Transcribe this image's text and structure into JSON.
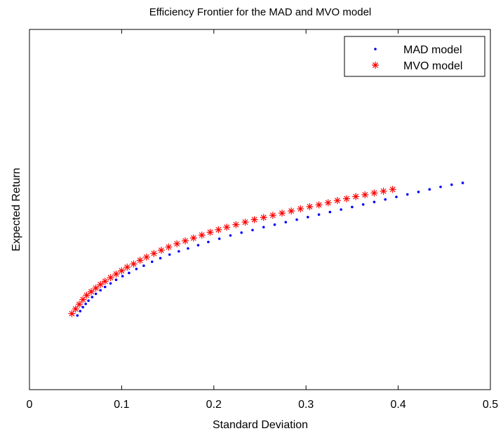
{
  "chart_data": {
    "type": "scatter",
    "title": "Efficiency Frontier for the MAD and MVO model",
    "xlabel": "Standard Deviation",
    "ylabel": "Expected Return",
    "xlim": [
      0,
      0.5
    ],
    "ylim": [
      0,
      1
    ],
    "xticks": [
      0,
      0.1,
      0.2,
      0.3,
      0.4,
      0.5
    ],
    "xtick_labels": [
      "0",
      "0.1",
      "0.2",
      "0.3",
      "0.4",
      "0.5"
    ],
    "yticks_visible": false,
    "grid": false,
    "legend_position": "top-right",
    "series": [
      {
        "name": "MAD model",
        "marker": "dot",
        "color": "#0000ff",
        "x": [
          0.052,
          0.055,
          0.058,
          0.061,
          0.064,
          0.068,
          0.072,
          0.077,
          0.082,
          0.088,
          0.094,
          0.101,
          0.108,
          0.116,
          0.124,
          0.133,
          0.142,
          0.152,
          0.162,
          0.172,
          0.183,
          0.194,
          0.206,
          0.218,
          0.23,
          0.242,
          0.254,
          0.266,
          0.278,
          0.29,
          0.302,
          0.314,
          0.326,
          0.338,
          0.35,
          0.362,
          0.374,
          0.386,
          0.398,
          0.41,
          0.422,
          0.434,
          0.446,
          0.458,
          0.47
        ],
        "y": [
          0.206,
          0.218,
          0.229,
          0.238,
          0.247,
          0.257,
          0.266,
          0.276,
          0.285,
          0.295,
          0.305,
          0.315,
          0.324,
          0.335,
          0.344,
          0.355,
          0.365,
          0.375,
          0.384,
          0.392,
          0.401,
          0.41,
          0.419,
          0.428,
          0.436,
          0.443,
          0.451,
          0.458,
          0.465,
          0.472,
          0.479,
          0.486,
          0.493,
          0.5,
          0.507,
          0.514,
          0.521,
          0.528,
          0.535,
          0.542,
          0.549,
          0.556,
          0.563,
          0.569,
          0.574
        ]
      },
      {
        "name": "MVO model",
        "marker": "star",
        "color": "#ff0000",
        "x": [
          0.046,
          0.05,
          0.054,
          0.058,
          0.062,
          0.067,
          0.072,
          0.077,
          0.082,
          0.088,
          0.094,
          0.1,
          0.106,
          0.113,
          0.12,
          0.127,
          0.135,
          0.143,
          0.151,
          0.16,
          0.169,
          0.178,
          0.187,
          0.196,
          0.205,
          0.214,
          0.224,
          0.234,
          0.244,
          0.254,
          0.264,
          0.274,
          0.284,
          0.294,
          0.304,
          0.314,
          0.324,
          0.334,
          0.344,
          0.354,
          0.364,
          0.374,
          0.384,
          0.394
        ],
        "y": [
          0.211,
          0.224,
          0.237,
          0.25,
          0.262,
          0.272,
          0.282,
          0.292,
          0.301,
          0.311,
          0.321,
          0.33,
          0.34,
          0.349,
          0.359,
          0.368,
          0.378,
          0.387,
          0.396,
          0.405,
          0.413,
          0.421,
          0.429,
          0.437,
          0.444,
          0.451,
          0.458,
          0.465,
          0.472,
          0.478,
          0.484,
          0.49,
          0.496,
          0.502,
          0.508,
          0.513,
          0.519,
          0.525,
          0.53,
          0.536,
          0.541,
          0.546,
          0.551,
          0.556
        ]
      }
    ]
  }
}
